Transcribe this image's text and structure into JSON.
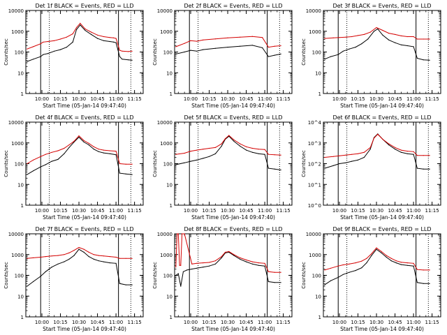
{
  "chart_data": [
    {
      "type": "line",
      "title": "Det 1f BLACK = Events, RED = LLD",
      "xlabel": "Start Time (05-Jan-14 09:47:40)",
      "ylabel": "Counts/sec",
      "y_scale": "log",
      "ylim": [
        1,
        10000
      ],
      "y_ticks": [
        "1",
        "10",
        "100",
        "1000",
        "10000"
      ],
      "x_ticks": [
        "10:00",
        "10:15",
        "10:30",
        "10:45",
        "11:00",
        "11:15"
      ],
      "series": [
        {
          "color": "#000000",
          "x": [
            "09:48",
            "09:53",
            "09:59",
            "10:01",
            "10:05",
            "10:10",
            "10:15",
            "10:20",
            "10:25",
            "10:28",
            "10:31",
            "10:35",
            "10:40",
            "10:45",
            "10:50",
            "10:55",
            "10:58",
            "11:00",
            "11:03",
            "11:05",
            "11:10",
            "11:13"
          ],
          "values": [
            35,
            45,
            60,
            75,
            85,
            110,
            130,
            170,
            300,
            1200,
            2000,
            1100,
            700,
            450,
            350,
            320,
            300,
            280,
            60,
            45,
            42,
            40
          ]
        },
        {
          "color": "#d40000",
          "x": [
            "09:48",
            "09:53",
            "09:59",
            "10:01",
            "10:05",
            "10:10",
            "10:15",
            "10:20",
            "10:25",
            "10:28",
            "10:31",
            "10:35",
            "10:40",
            "10:45",
            "10:50",
            "10:55",
            "10:58",
            "11:00",
            "11:03",
            "11:05",
            "11:10",
            "11:13"
          ],
          "values": [
            140,
            180,
            250,
            300,
            320,
            350,
            420,
            520,
            750,
            1500,
            2400,
            1300,
            900,
            650,
            550,
            500,
            480,
            450,
            120,
            110,
            105,
            110
          ]
        }
      ]
    },
    {
      "type": "line",
      "title": "Det 2f BLACK = Events, RED = LLD",
      "xlabel": "Start Time (05-Jan-14 09:47:40)",
      "ylabel": "Counts/sec",
      "y_scale": "log",
      "ylim": [
        1,
        10000
      ],
      "y_ticks": [
        "1",
        "10",
        "100",
        "1000",
        "10000"
      ],
      "x_ticks": [
        "10:00",
        "10:15",
        "10:30",
        "10:45",
        "11:00",
        "11:15"
      ],
      "series": [
        {
          "color": "#000000",
          "x": [
            "09:48",
            "09:55",
            "10:00",
            "10:05",
            "10:10",
            "10:20",
            "10:30",
            "10:40",
            "10:50",
            "10:58",
            "11:03",
            "11:08",
            "11:13"
          ],
          "values": [
            80,
            100,
            120,
            110,
            130,
            150,
            170,
            190,
            210,
            160,
            60,
            70,
            80
          ]
        },
        {
          "color": "#d40000",
          "x": [
            "09:48",
            "09:55",
            "10:00",
            "10:05",
            "10:10",
            "10:20",
            "10:30",
            "10:40",
            "10:50",
            "10:58",
            "11:03",
            "11:08",
            "11:13"
          ],
          "values": [
            180,
            260,
            350,
            330,
            380,
            430,
            480,
            520,
            560,
            500,
            170,
            190,
            200
          ]
        }
      ]
    },
    {
      "type": "line",
      "title": "Det 3f BLACK = Events, RED = LLD",
      "xlabel": "Start Time (05-Jan-14 09:47:40)",
      "ylabel": "Counts/sec",
      "y_scale": "log",
      "ylim": [
        1,
        10000
      ],
      "y_ticks": [
        "1",
        "10",
        "100",
        "1000",
        "10000"
      ],
      "x_ticks": [
        "10:00",
        "10:15",
        "10:30",
        "10:45",
        "11:00",
        "11:15"
      ],
      "series": [
        {
          "color": "#000000",
          "x": [
            "09:48",
            "09:53",
            "09:59",
            "10:03",
            "10:08",
            "10:13",
            "10:18",
            "10:23",
            "10:28",
            "10:31",
            "10:35",
            "10:40",
            "10:45",
            "10:50",
            "10:55",
            "11:00",
            "11:03",
            "11:08",
            "11:13"
          ],
          "values": [
            45,
            60,
            75,
            110,
            140,
            170,
            250,
            420,
            1000,
            1300,
            650,
            380,
            280,
            220,
            200,
            180,
            50,
            42,
            40
          ]
        },
        {
          "color": "#d40000",
          "x": [
            "09:48",
            "09:55",
            "10:00",
            "10:05",
            "10:10",
            "10:15",
            "10:20",
            "10:25",
            "10:30",
            "10:35",
            "10:40",
            "10:45",
            "10:50",
            "10:55",
            "11:00",
            "11:03",
            "11:08",
            "11:13"
          ],
          "values": [
            450,
            480,
            500,
            520,
            550,
            620,
            700,
            900,
            1500,
            1100,
            800,
            700,
            600,
            550,
            550,
            420,
            420,
            420
          ]
        }
      ]
    },
    {
      "type": "line",
      "title": "Det 4f BLACK = Events, RED = LLD",
      "xlabel": "Start Time (05-Jan-14 09:47:40)",
      "ylabel": "Counts/sec",
      "y_scale": "log",
      "ylim": [
        1,
        10000
      ],
      "y_ticks": [
        "1",
        "10",
        "100",
        "1000",
        "10000"
      ],
      "x_ticks": [
        "10:00",
        "10:15",
        "10:30",
        "10:45",
        "11:00",
        "11:15"
      ],
      "series": [
        {
          "color": "#000000",
          "x": [
            "09:48",
            "09:53",
            "09:59",
            "10:03",
            "10:08",
            "10:13",
            "10:18",
            "10:22",
            "10:26",
            "10:30",
            "10:34",
            "10:38",
            "10:42",
            "10:46",
            "10:50",
            "10:55",
            "11:00",
            "11:03",
            "11:08",
            "11:13"
          ],
          "values": [
            30,
            45,
            70,
            90,
            130,
            160,
            300,
            600,
            1100,
            1900,
            1100,
            800,
            500,
            380,
            330,
            300,
            270,
            35,
            32,
            30
          ]
        },
        {
          "color": "#d40000",
          "x": [
            "09:48",
            "09:53",
            "09:59",
            "10:03",
            "10:08",
            "10:13",
            "10:18",
            "10:22",
            "10:26",
            "10:30",
            "10:34",
            "10:38",
            "10:42",
            "10:46",
            "10:50",
            "10:55",
            "11:00",
            "11:03",
            "11:08",
            "11:13"
          ],
          "values": [
            100,
            150,
            220,
            280,
            350,
            420,
            550,
            800,
            1200,
            2200,
            1300,
            950,
            650,
            500,
            450,
            420,
            400,
            100,
            95,
            95
          ]
        }
      ]
    },
    {
      "type": "line",
      "title": "Det 5f BLACK = Events, RED = LLD",
      "xlabel": "Start Time (05-Jan-14 09:47:40)",
      "ylabel": "Counts/sec",
      "y_scale": "log",
      "ylim": [
        1,
        10000
      ],
      "y_ticks": [
        "1",
        "10",
        "100",
        "1000",
        "10000"
      ],
      "x_ticks": [
        "10:00",
        "10:15",
        "10:30",
        "10:45",
        "11:00",
        "11:15"
      ],
      "series": [
        {
          "color": "#000000",
          "x": [
            "09:48",
            "09:55",
            "10:00",
            "10:05",
            "10:10",
            "10:15",
            "10:20",
            "10:25",
            "10:28",
            "10:31",
            "10:35",
            "10:40",
            "10:45",
            "10:50",
            "10:55",
            "11:00",
            "11:03",
            "11:08",
            "11:13"
          ],
          "values": [
            90,
            110,
            130,
            150,
            180,
            220,
            300,
            700,
            1500,
            2100,
            1200,
            700,
            450,
            350,
            300,
            280,
            60,
            55,
            50
          ]
        },
        {
          "color": "#d40000",
          "x": [
            "09:48",
            "09:55",
            "10:00",
            "10:05",
            "10:10",
            "10:15",
            "10:20",
            "10:25",
            "10:28",
            "10:31",
            "10:35",
            "10:40",
            "10:45",
            "10:50",
            "10:55",
            "11:00",
            "11:03",
            "11:08",
            "11:13"
          ],
          "values": [
            280,
            320,
            400,
            450,
            500,
            550,
            600,
            900,
            1600,
            2300,
            1400,
            900,
            650,
            550,
            500,
            480,
            280,
            270,
            260
          ]
        }
      ]
    },
    {
      "type": "line",
      "title": "Det 6f BLACK = Events, RED = LLD",
      "xlabel": "Start Time (05-Jan-14 09:47:40)",
      "ylabel": "Counts/sec",
      "y_scale": "log",
      "ylim": [
        1,
        10000
      ],
      "y_ticks": [
        "10^0",
        "10^1",
        "10^2",
        "10^3",
        "10^4"
      ],
      "x_ticks": [
        "10:00",
        "10:15",
        "10:30",
        "10:45",
        "11:00",
        "11:15"
      ],
      "series": [
        {
          "color": "#000000",
          "x": [
            "09:48",
            "09:55",
            "10:00",
            "10:05",
            "10:10",
            "10:15",
            "10:20",
            "10:25",
            "10:28",
            "10:31",
            "10:35",
            "10:40",
            "10:45",
            "10:50",
            "10:55",
            "11:00",
            "11:03",
            "11:08",
            "11:13"
          ],
          "values": [
            60,
            80,
            100,
            110,
            130,
            150,
            200,
            500,
            1800,
            2700,
            1500,
            800,
            500,
            350,
            300,
            280,
            60,
            55,
            55
          ]
        },
        {
          "color": "#d40000",
          "x": [
            "09:48",
            "09:55",
            "10:00",
            "10:05",
            "10:10",
            "10:15",
            "10:20",
            "10:25",
            "10:28",
            "10:31",
            "10:35",
            "10:40",
            "10:45",
            "10:50",
            "10:55",
            "11:00",
            "11:03",
            "11:08",
            "11:13"
          ],
          "values": [
            200,
            220,
            240,
            260,
            280,
            300,
            350,
            600,
            1700,
            2600,
            1500,
            900,
            600,
            450,
            400,
            380,
            250,
            250,
            250
          ]
        }
      ]
    },
    {
      "type": "line",
      "title": "Det 7f BLACK = Events, RED = LLD",
      "xlabel": "Start Time (05-Jan-14 09:47:40)",
      "ylabel": "Counts/sec",
      "y_scale": "log",
      "ylim": [
        1,
        10000
      ],
      "y_ticks": [
        "1",
        "10",
        "100",
        "1000",
        "10000"
      ],
      "x_ticks": [
        "10:00",
        "10:15",
        "10:30",
        "10:45",
        "11:00",
        "11:15"
      ],
      "series": [
        {
          "color": "#000000",
          "x": [
            "09:48",
            "09:53",
            "09:59",
            "10:03",
            "10:08",
            "10:13",
            "10:18",
            "10:22",
            "10:26",
            "10:30",
            "10:34",
            "10:38",
            "10:42",
            "10:46",
            "10:50",
            "10:55",
            "11:00",
            "11:03",
            "11:08",
            "11:13"
          ],
          "values": [
            30,
            50,
            90,
            150,
            250,
            350,
            450,
            600,
            900,
            1800,
            1300,
            800,
            600,
            500,
            450,
            400,
            380,
            40,
            35,
            35
          ]
        },
        {
          "color": "#d40000",
          "x": [
            "09:48",
            "09:53",
            "09:59",
            "10:03",
            "10:08",
            "10:13",
            "10:18",
            "10:22",
            "10:26",
            "10:30",
            "10:34",
            "10:38",
            "10:42",
            "10:46",
            "10:50",
            "10:55",
            "11:00",
            "11:03",
            "11:08",
            "11:13"
          ],
          "values": [
            650,
            700,
            750,
            800,
            850,
            900,
            1000,
            1200,
            1600,
            2200,
            1800,
            1300,
            1000,
            900,
            850,
            800,
            750,
            650,
            650,
            650
          ]
        }
      ]
    },
    {
      "type": "line",
      "title": "Det 8f BLACK = Events, RED = LLD",
      "xlabel": "Start Time (05-Jan-14 09:47:40)",
      "ylabel": "Counts/sec",
      "y_scale": "log",
      "ylim": [
        1,
        10000
      ],
      "y_ticks": [
        "1",
        "10",
        "100",
        "1000",
        "10000"
      ],
      "x_ticks": [
        "10:00",
        "10:15",
        "10:30",
        "10:45",
        "11:00",
        "11:15"
      ],
      "series": [
        {
          "color": "#000000",
          "x": [
            "09:48",
            "09:50",
            "09:52",
            "09:54",
            "09:57",
            "10:01",
            "10:05",
            "10:10",
            "10:15",
            "10:20",
            "10:25",
            "10:28",
            "10:31",
            "10:35",
            "10:40",
            "10:45",
            "10:50",
            "10:55",
            "11:00",
            "11:03",
            "11:08",
            "11:13"
          ],
          "values": [
            100,
            120,
            30,
            150,
            180,
            200,
            220,
            250,
            280,
            350,
            700,
            1200,
            1300,
            900,
            600,
            450,
            350,
            300,
            280,
            50,
            45,
            45
          ]
        },
        {
          "color": "#d40000",
          "x": [
            "09:48",
            "09:49",
            "09:50",
            "09:51",
            "09:52",
            "09:53",
            "09:55",
            "10:01",
            "10:05",
            "10:10",
            "10:15",
            "10:20",
            "10:25",
            "10:28",
            "10:31",
            "10:35",
            "10:40",
            "10:45",
            "10:50",
            "10:55",
            "11:00",
            "11:03",
            "11:08",
            "11:13"
          ],
          "values": [
            250,
            10000,
            10000,
            300,
            300,
            10000,
            10000,
            350,
            380,
            400,
            420,
            500,
            800,
            1300,
            1400,
            1000,
            700,
            550,
            450,
            400,
            380,
            150,
            140,
            140
          ]
        }
      ]
    },
    {
      "type": "line",
      "title": "Det 9f BLACK = Events, RED = LLD",
      "xlabel": "Start Time (05-Jan-14 09:47:40)",
      "ylabel": "Counts/sec",
      "y_scale": "log",
      "ylim": [
        1,
        10000
      ],
      "y_ticks": [
        "1",
        "10",
        "100",
        "1000",
        "10000"
      ],
      "x_ticks": [
        "10:00",
        "10:15",
        "10:30",
        "10:45",
        "11:00",
        "11:15"
      ],
      "series": [
        {
          "color": "#000000",
          "x": [
            "09:48",
            "09:53",
            "09:59",
            "10:03",
            "10:08",
            "10:13",
            "10:18",
            "10:22",
            "10:26",
            "10:30",
            "10:34",
            "10:38",
            "10:42",
            "10:46",
            "10:50",
            "10:55",
            "11:00",
            "11:03",
            "11:08",
            "11:13"
          ],
          "values": [
            35,
            55,
            80,
            110,
            140,
            170,
            230,
            400,
            900,
            1800,
            1200,
            750,
            500,
            400,
            330,
            300,
            280,
            45,
            40,
            40
          ]
        },
        {
          "color": "#d40000",
          "x": [
            "09:48",
            "09:53",
            "09:59",
            "10:03",
            "10:08",
            "10:13",
            "10:18",
            "10:22",
            "10:26",
            "10:30",
            "10:34",
            "10:38",
            "10:42",
            "10:46",
            "10:50",
            "10:55",
            "11:00",
            "11:03",
            "11:08",
            "11:13"
          ],
          "values": [
            180,
            220,
            280,
            320,
            350,
            400,
            480,
            650,
            1100,
            2100,
            1400,
            900,
            650,
            500,
            430,
            400,
            380,
            190,
            180,
            180
          ]
        }
      ]
    }
  ]
}
